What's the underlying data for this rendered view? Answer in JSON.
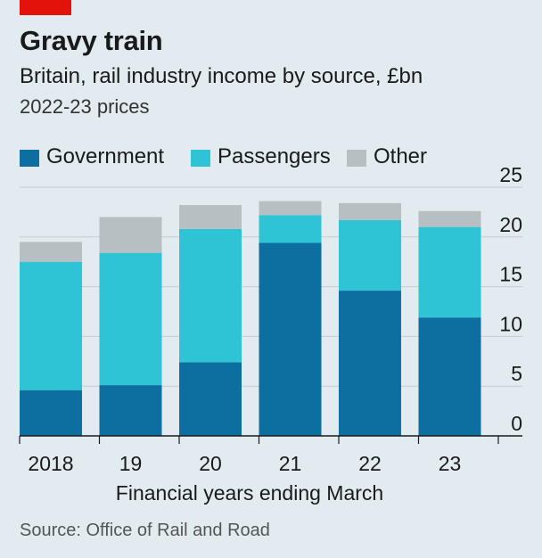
{
  "header": {
    "title": "Gravy train",
    "subtitle": "Britain, rail industry income by source, £bn",
    "note": "2022-23 prices"
  },
  "footer": {
    "source": "Source: Office of Rail and Road"
  },
  "colors": {
    "accent": "#e3120b",
    "background": "#e1ebf0",
    "government": "#0d6ea0",
    "passengers": "#2fc3d6",
    "other": "#b8bfc3",
    "grid": "#c3ccd1",
    "axis": "#1a1a1a"
  },
  "chart_data": {
    "type": "bar",
    "stacked": true,
    "categories": [
      "2018",
      "19",
      "20",
      "21",
      "22",
      "23"
    ],
    "series": [
      {
        "name": "Government",
        "values": [
          4.6,
          5.1,
          7.4,
          19.4,
          14.6,
          11.9
        ]
      },
      {
        "name": "Passengers",
        "values": [
          12.9,
          13.3,
          13.4,
          2.8,
          7.1,
          9.1
        ]
      },
      {
        "name": "Other",
        "values": [
          2.0,
          3.6,
          2.4,
          1.4,
          1.7,
          1.6
        ]
      }
    ],
    "xlabel": "Financial years ending March",
    "ylabel": "",
    "ylim": [
      0,
      25
    ],
    "yticks": [
      0,
      5,
      10,
      15,
      20,
      25
    ],
    "yaxis_side": "right",
    "grid": true,
    "legend": "top"
  }
}
